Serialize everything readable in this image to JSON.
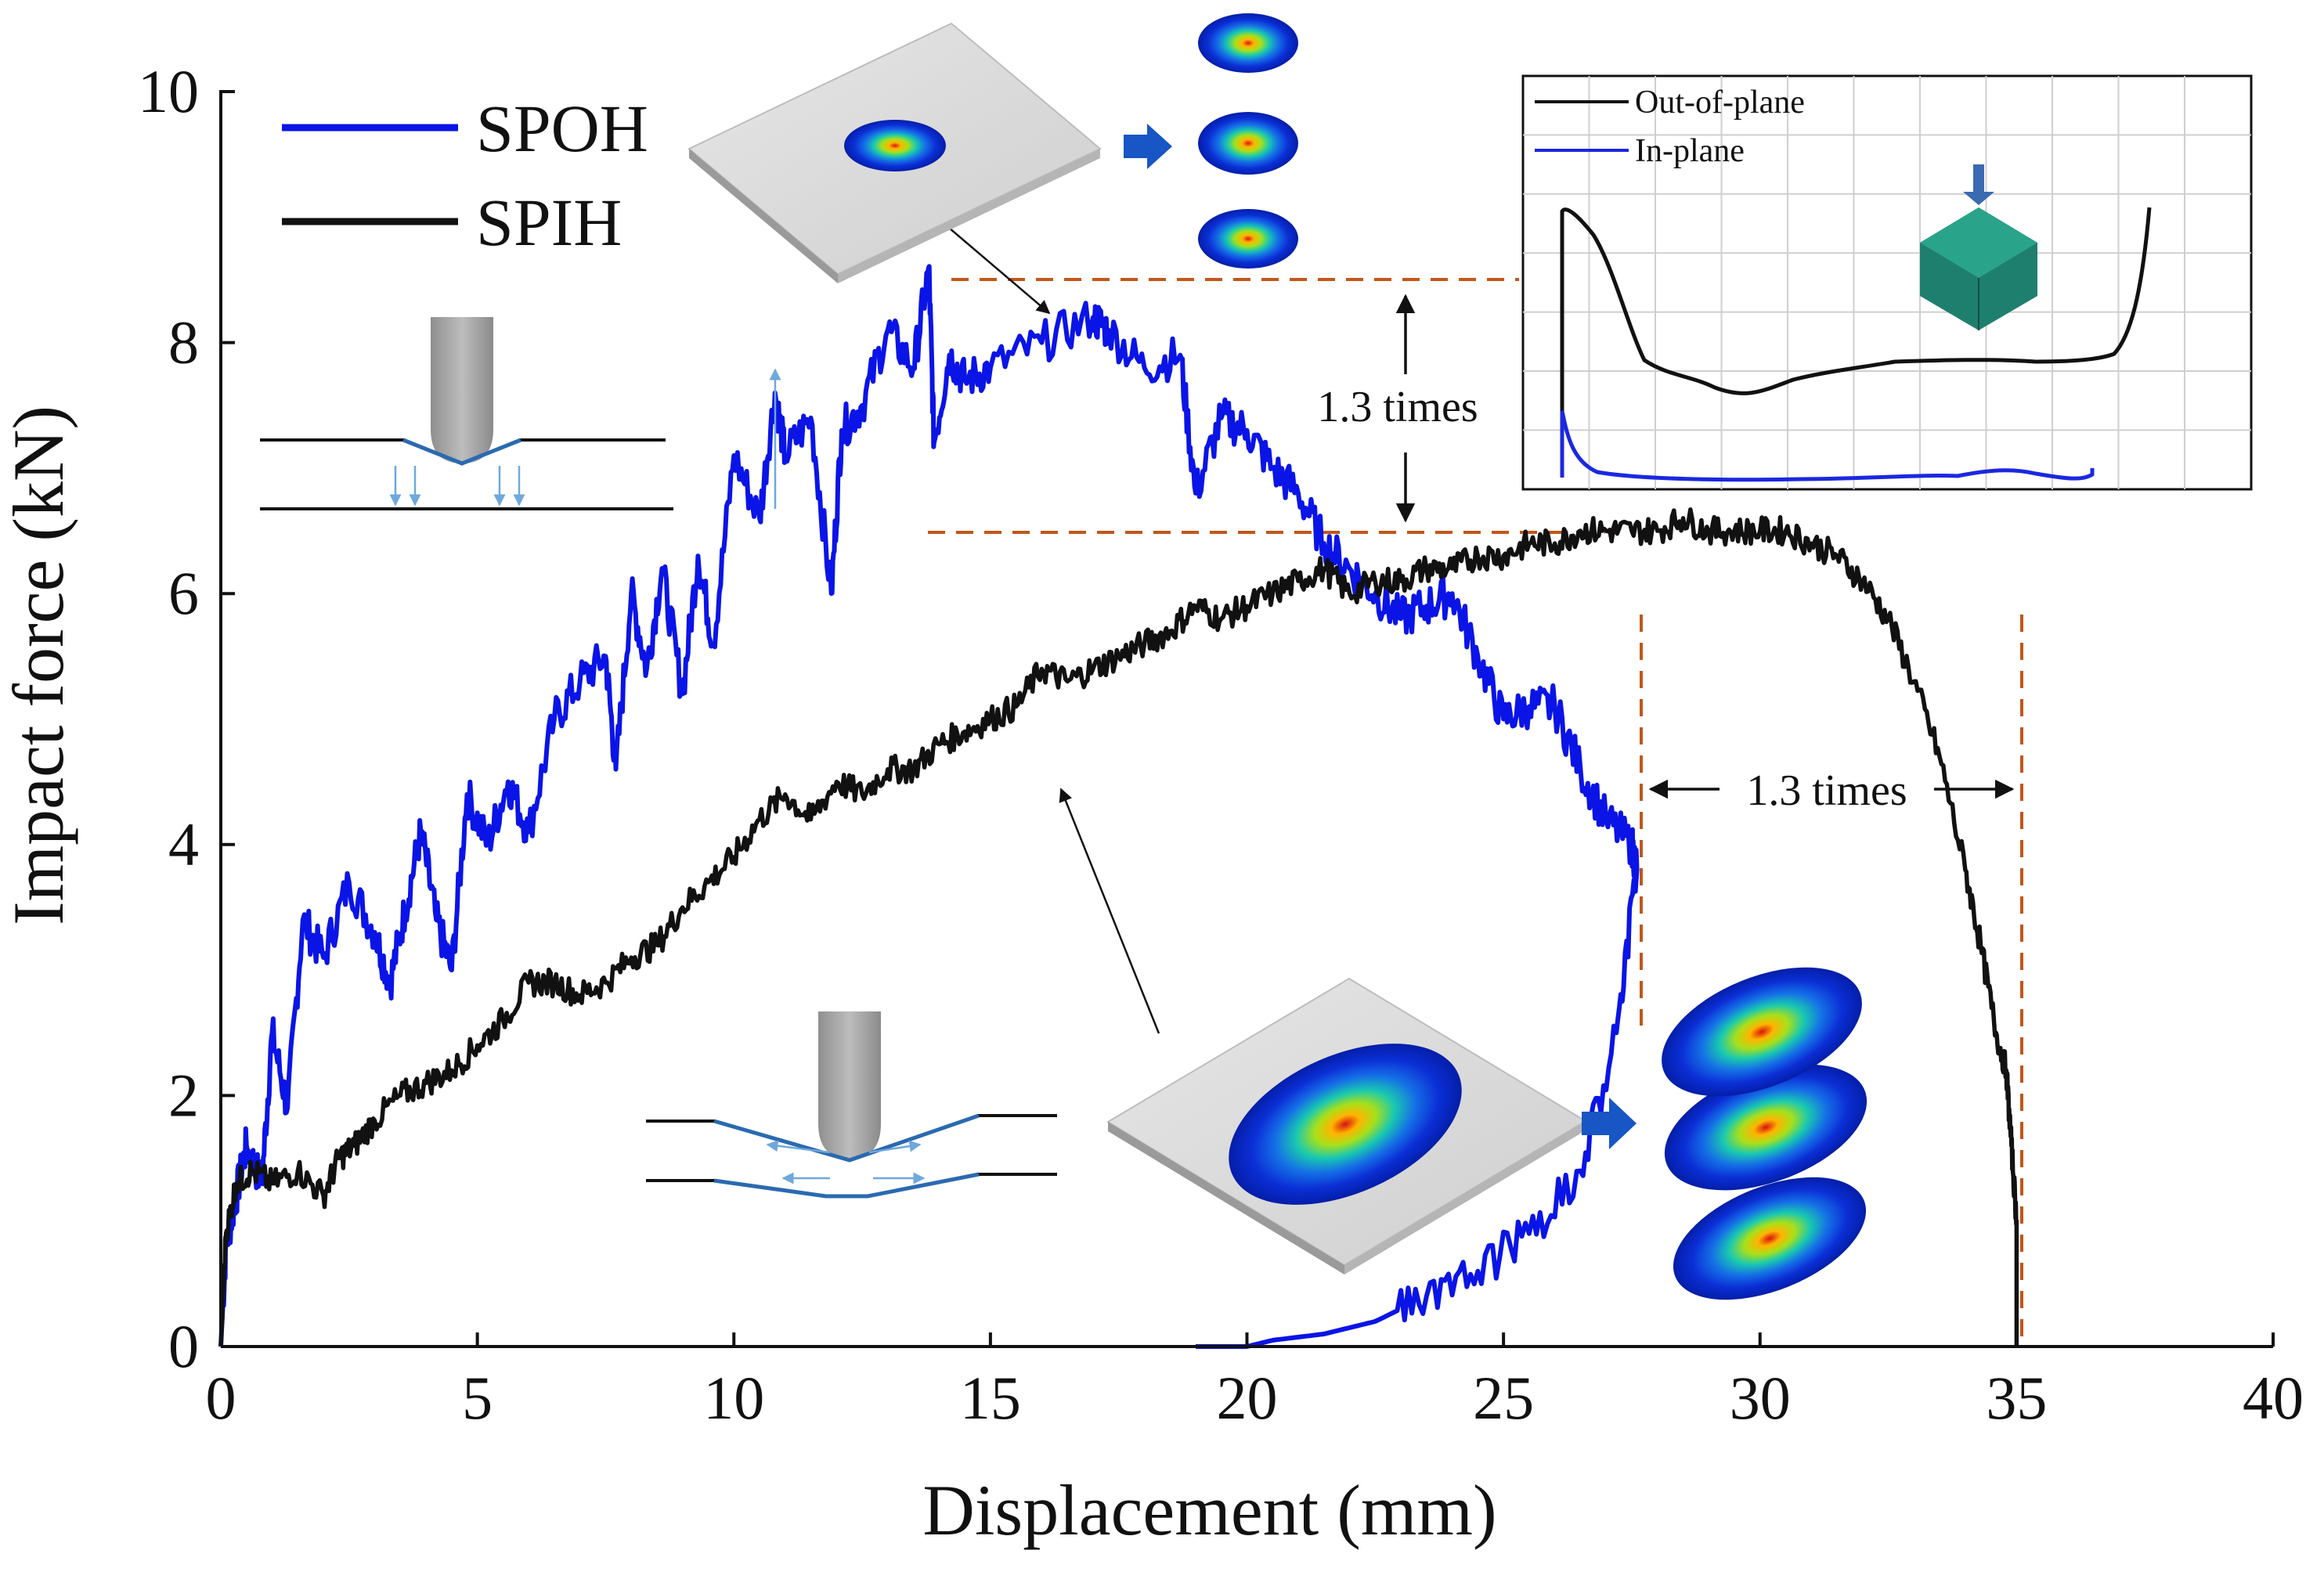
{
  "chart_data": {
    "type": "line",
    "title": "",
    "xlabel": "Displacement (mm)",
    "ylabel": "Impact force (kN)",
    "xlim": [
      0,
      40
    ],
    "ylim": [
      0,
      10
    ],
    "xticks": [
      0,
      5,
      10,
      15,
      20,
      25,
      30,
      35,
      40
    ],
    "yticks": [
      0,
      2,
      4,
      6,
      8,
      10
    ],
    "grid": false,
    "legend_position": "top-left",
    "series": [
      {
        "name": "SPOH",
        "color": "#0a14e6",
        "x": [
          0,
          0.1,
          0.3,
          0.5,
          0.8,
          1.0,
          1.3,
          1.6,
          2.0,
          2.5,
          3.0,
          3.3,
          3.6,
          3.9,
          4.2,
          4.5,
          4.8,
          5.2,
          5.6,
          6.0,
          6.5,
          7.0,
          7.5,
          7.7,
          8.0,
          8.3,
          8.6,
          9.0,
          9.3,
          9.6,
          10.0,
          10.5,
          10.8,
          11.0,
          11.5,
          11.9,
          12.1,
          12.5,
          13.0,
          13.5,
          13.8,
          13.9,
          14.2,
          14.5,
          15.0,
          16.0,
          17.0,
          17.3,
          18.0,
          18.7,
          19.0,
          19.5,
          20.0,
          20.5,
          21.0,
          21.5,
          22.0,
          22.5,
          23.0,
          23.5,
          24.0,
          24.5,
          25.0,
          25.5,
          26.0,
          26.5,
          27.0,
          27.5,
          27.6,
          27.2,
          26.5,
          25.5,
          24.5,
          23.5,
          22.5,
          21.5,
          20.5,
          20.0,
          19.0
        ],
        "y": [
          0,
          0.8,
          1.2,
          1.6,
          1.3,
          2.5,
          1.9,
          3.4,
          3.1,
          3.7,
          3.3,
          2.9,
          3.5,
          4.1,
          3.4,
          3.0,
          4.4,
          4.0,
          4.5,
          4.1,
          5.0,
          5.3,
          5.5,
          4.6,
          6.0,
          5.4,
          6.2,
          5.2,
          6.3,
          5.6,
          7.1,
          6.6,
          7.6,
          7.1,
          7.4,
          6.0,
          7.3,
          7.5,
          8.1,
          7.8,
          8.6,
          7.2,
          7.9,
          7.7,
          7.8,
          8.0,
          8.2,
          8.1,
          7.8,
          7.9,
          6.8,
          7.4,
          7.3,
          7.0,
          6.8,
          6.4,
          6.2,
          6.0,
          5.8,
          5.9,
          6.0,
          5.5,
          5.0,
          5.1,
          5.1,
          4.6,
          4.2,
          4.0,
          3.8,
          2.5,
          1.4,
          0.9,
          0.6,
          0.4,
          0.2,
          0.1,
          0.05,
          0.0,
          0.0
        ]
      },
      {
        "name": "SPIH",
        "color": "#111111",
        "x": [
          0,
          0.1,
          0.3,
          0.6,
          1.0,
          1.5,
          2.0,
          2.3,
          2.6,
          3.0,
          3.5,
          4.0,
          4.5,
          5.0,
          5.5,
          6.0,
          6.5,
          7.0,
          7.5,
          8.0,
          8.5,
          9.0,
          9.5,
          10.0,
          10.5,
          11.0,
          11.5,
          12.0,
          12.5,
          13.0,
          13.5,
          14.0,
          14.5,
          15.0,
          15.5,
          16.0,
          16.5,
          17.0,
          17.5,
          18.0,
          18.5,
          19.0,
          19.5,
          20.0,
          20.5,
          21.0,
          21.5,
          22.0,
          22.5,
          23.0,
          23.5,
          24.0,
          24.5,
          25.0,
          25.5,
          26.0,
          26.5,
          27.0,
          27.5,
          28.0,
          28.5,
          29.0,
          29.5,
          30.0,
          30.5,
          31.0,
          31.5,
          32.0,
          32.5,
          33.0,
          33.5,
          34.0,
          34.3,
          34.6,
          34.8,
          34.9,
          35.0,
          35.0
        ],
        "y": [
          0,
          0.9,
          1.3,
          1.4,
          1.3,
          1.4,
          1.2,
          1.5,
          1.6,
          1.8,
          2.0,
          2.1,
          2.2,
          2.4,
          2.6,
          2.9,
          2.9,
          2.8,
          2.9,
          3.1,
          3.2,
          3.5,
          3.7,
          3.9,
          4.2,
          4.4,
          4.2,
          4.5,
          4.4,
          4.6,
          4.6,
          4.8,
          4.9,
          5.0,
          5.1,
          5.4,
          5.3,
          5.4,
          5.5,
          5.6,
          5.7,
          5.9,
          5.8,
          5.9,
          6.0,
          6.1,
          6.2,
          6.0,
          6.1,
          6.1,
          6.2,
          6.2,
          6.3,
          6.3,
          6.4,
          6.4,
          6.5,
          6.5,
          6.5,
          6.5,
          6.6,
          6.5,
          6.5,
          6.5,
          6.5,
          6.4,
          6.3,
          6.1,
          5.8,
          5.3,
          4.7,
          3.8,
          3.2,
          2.5,
          2.2,
          1.6,
          1.0,
          0.0
        ]
      }
    ],
    "annotations": [
      {
        "text": "1.3 times",
        "kind": "peak force ratio",
        "between_y": [
          6.5,
          8.5
        ]
      },
      {
        "text": "1.3 times",
        "kind": "displacement ratio",
        "between_x": [
          27.7,
          35.0
        ]
      }
    ],
    "inset": {
      "type": "line",
      "legend": [
        {
          "name": "Out-of-plane",
          "color": "#111111"
        },
        {
          "name": "In-plane",
          "color": "#1a28e0"
        }
      ]
    }
  }
}
